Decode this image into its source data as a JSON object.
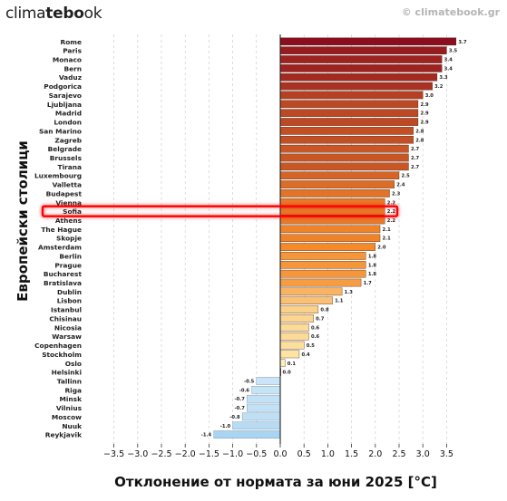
{
  "header": {
    "brand_prefix": "clima",
    "brand_bold": "tebo",
    "brand_suffix": "ok",
    "copyright": "© climatebook.gr"
  },
  "chart_data": {
    "type": "bar",
    "orientation": "horizontal",
    "xlabel": "Отклонение от нормата за юни 2025 [°C]",
    "ylabel": "Европейски столици",
    "xlim": [
      -4.0,
      4.0
    ],
    "xticks": [
      -3.5,
      -3.0,
      -2.5,
      -2.0,
      -1.5,
      -1.0,
      -0.5,
      0.0,
      0.5,
      1.0,
      1.5,
      2.0,
      2.5,
      3.0,
      3.5
    ],
    "grid": "vertical dashed",
    "highlight": "Sofia",
    "highlight_color": "#ff0000",
    "colors": {
      "hot": "#8b0d1e",
      "warm": "#f48a2a",
      "mild": "#fff3b8",
      "cool": "#ddeef9",
      "cold": "#a9d4f2"
    },
    "categories": [
      "Rome",
      "Paris",
      "Monaco",
      "Bern",
      "Vaduz",
      "Podgorica",
      "Sarajevo",
      "Ljubljana",
      "Madrid",
      "London",
      "San Marino",
      "Zagreb",
      "Belgrade",
      "Brussels",
      "Tirana",
      "Luxembourg",
      "Valletta",
      "Budapest",
      "Vienna",
      "Sofia",
      "Athens",
      "The Hague",
      "Skopje",
      "Amsterdam",
      "Berlin",
      "Prague",
      "Bucharest",
      "Bratislava",
      "Dublin",
      "Lisbon",
      "Istanbul",
      "Chisinau",
      "Nicosia",
      "Warsaw",
      "Copenhagen",
      "Stockholm",
      "Oslo",
      "Helsinki",
      "Tallinn",
      "Riga",
      "Minsk",
      "Vilnius",
      "Moscow",
      "Nuuk",
      "Reykjavik"
    ],
    "values": [
      3.7,
      3.5,
      3.4,
      3.4,
      3.3,
      3.2,
      3.0,
      2.9,
      2.9,
      2.9,
      2.8,
      2.8,
      2.7,
      2.7,
      2.7,
      2.5,
      2.4,
      2.3,
      2.2,
      2.2,
      2.2,
      2.1,
      2.1,
      2.0,
      1.8,
      1.8,
      1.8,
      1.7,
      1.3,
      1.1,
      0.8,
      0.7,
      0.6,
      0.6,
      0.5,
      0.4,
      0.1,
      0.0,
      -0.5,
      -0.6,
      -0.7,
      -0.7,
      -0.8,
      -1.0,
      -1.4
    ],
    "labels": [
      "3.7",
      "3.5",
      "3.4",
      "3.4",
      "3.3",
      "3.2",
      "3.0",
      "2.9",
      "2.9",
      "2.9",
      "2.8",
      "2.8",
      "2.7",
      "2.7",
      "2.7",
      "2.5",
      "2.4",
      "2.3",
      "2.2",
      "2.2",
      "2.2",
      "2.1",
      "2.1",
      "2.0",
      "1.8",
      "1.8",
      "1.8",
      "1.7",
      "1.3",
      "1.1",
      "0.8",
      "0.7",
      "0.6",
      "0.6",
      "0.5",
      "0.4",
      "0.1",
      "0.0",
      "-0.5",
      "-0.6",
      "-0.7",
      "-0.7",
      "-0.8",
      "-1.0",
      "-1.4"
    ]
  }
}
